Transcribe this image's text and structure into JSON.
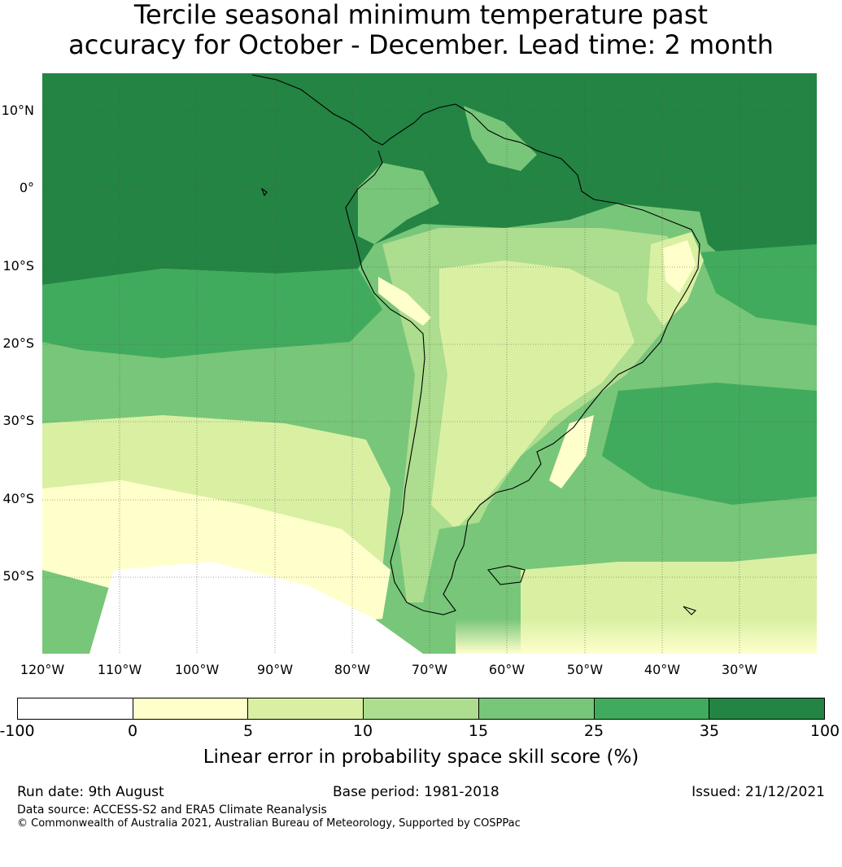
{
  "title": {
    "line1": "Tercile seasonal minimum temperature past",
    "line2": "accuracy for October - December. Lead time: 2 month"
  },
  "map": {
    "lat_labels": [
      "10°N",
      "0°",
      "10°S",
      "20°S",
      "30°S",
      "40°S",
      "50°S"
    ],
    "lon_labels": [
      "120°W",
      "110°W",
      "100°W",
      "90°W",
      "80°W",
      "70°W",
      "60°W",
      "50°W",
      "40°W",
      "30°W"
    ],
    "palette": [
      "#ffffff",
      "#ffffcc",
      "#d9f0a3",
      "#addd8e",
      "#78c679",
      "#41ab5d",
      "#238443"
    ]
  },
  "colorbar": {
    "ticks": [
      "-100",
      "0",
      "5",
      "10",
      "15",
      "25",
      "35",
      "100"
    ],
    "label": "Linear error in probability space skill score (%)"
  },
  "footer": {
    "run_date": "Run date: 9th August",
    "base_period": "Base period: 1981-2018",
    "issued": "Issued: 21/12/2021",
    "data_source": "Data source: ACCESS-S2 and ERA5 Climate Reanalysis",
    "copyright": "© Commonwealth of Australia 2021, Australian Bureau of Meteorology, Supported by COSPPac"
  }
}
